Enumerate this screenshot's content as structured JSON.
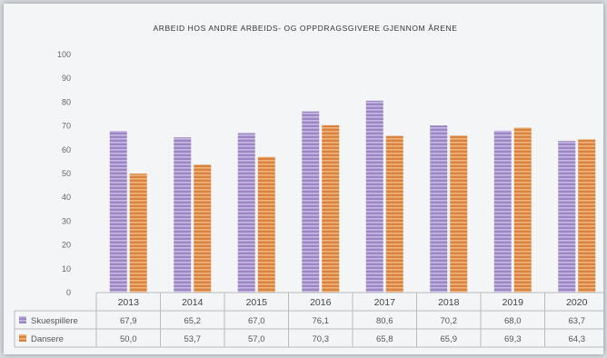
{
  "chart_data": {
    "type": "bar",
    "title": "ARBEID HOS ANDRE ARBEIDS- OG OPPDRAGSGIVERE GJENNOM ÅRENE",
    "xlabel": "",
    "ylabel": "",
    "ylim": [
      0,
      100
    ],
    "yticks": [
      0,
      10,
      20,
      30,
      40,
      50,
      60,
      70,
      80,
      90,
      100
    ],
    "categories": [
      "2013",
      "2014",
      "2015",
      "2016",
      "2017",
      "2018",
      "2019",
      "2020"
    ],
    "series": [
      {
        "name": "Skuespillere",
        "color": "#9b86c4",
        "values": [
          67.9,
          65.2,
          67.0,
          76.1,
          80.6,
          70.2,
          68.0,
          63.7
        ],
        "labels": [
          "67,9",
          "65,2",
          "67,0",
          "76,1",
          "80,6",
          "70,2",
          "68,0",
          "63,7"
        ]
      },
      {
        "name": "Dansere",
        "color": "#d9823d",
        "values": [
          50.0,
          53.7,
          57.0,
          70.3,
          65.8,
          65.9,
          69.3,
          64.3
        ],
        "labels": [
          "50,0",
          "53,7",
          "57,0",
          "70,3",
          "65,8",
          "65,9",
          "69,3",
          "64,3"
        ]
      }
    ],
    "grid": false,
    "legend": "data-table"
  }
}
